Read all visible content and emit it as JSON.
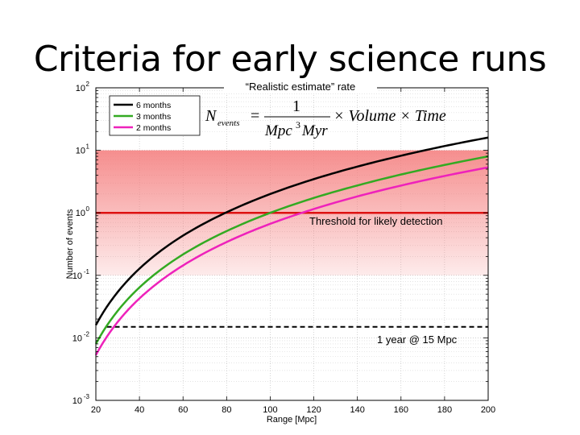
{
  "slide": {
    "title": "Criteria for early science runs"
  },
  "chart_data": {
    "type": "line",
    "title": "“Realistic estimate” rate",
    "xlabel": "Range [Mpc]",
    "ylabel": "Number of events",
    "xlim": [
      20,
      200
    ],
    "ylim": [
      0.001,
      100
    ],
    "yscale": "log",
    "grid": true,
    "legend_placement": "top-left",
    "x_ticks": [
      "20",
      "40",
      "60",
      "80",
      "100",
      "120",
      "140",
      "160",
      "180",
      "200"
    ],
    "y_ticks": [
      {
        "base": "10",
        "exp": "-3"
      },
      {
        "base": "10",
        "exp": "-2"
      },
      {
        "base": "10",
        "exp": "-1"
      },
      {
        "base": "10",
        "exp": "0"
      },
      {
        "base": "10",
        "exp": "1"
      },
      {
        "base": "10",
        "exp": "2"
      }
    ],
    "series": [
      {
        "name": "6 months",
        "color": "#000000",
        "x": [
          20,
          40,
          60,
          80,
          100,
          120,
          140,
          160,
          180,
          200
        ],
        "y": [
          0.016,
          0.128,
          0.432,
          1.02,
          2.0,
          3.46,
          5.49,
          8.19,
          11.7,
          16.0
        ]
      },
      {
        "name": "3 months",
        "color": "#33aa22",
        "x": [
          20,
          40,
          60,
          80,
          100,
          120,
          140,
          160,
          180,
          200
        ],
        "y": [
          0.008,
          0.064,
          0.216,
          0.51,
          1.0,
          1.73,
          2.74,
          4.1,
          5.83,
          8.0
        ]
      },
      {
        "name": "2 months",
        "color": "#ee22bb",
        "x": [
          20,
          40,
          60,
          80,
          100,
          120,
          140,
          160,
          180,
          200
        ],
        "y": [
          0.0053,
          0.0427,
          0.144,
          0.341,
          0.667,
          1.15,
          1.83,
          2.73,
          3.89,
          5.33
        ]
      }
    ],
    "band": {
      "y_low": 0.1,
      "y_high": 10,
      "color": "#f08080"
    },
    "threshold": {
      "y": 1,
      "color": "#dd1111",
      "label": "Threshold for likely detection"
    },
    "reference": {
      "x_start": 25,
      "x_end": 200,
      "y": 0.015,
      "label": "1 year @ 15 Mpc"
    },
    "formula": {
      "lhs": "N",
      "lhs_sub": "events",
      "equals": "=",
      "numerator": "1",
      "den_a": "Mpc",
      "den_exp": "3",
      "den_b": "Myr",
      "rhs": "× Volume × Time"
    }
  }
}
